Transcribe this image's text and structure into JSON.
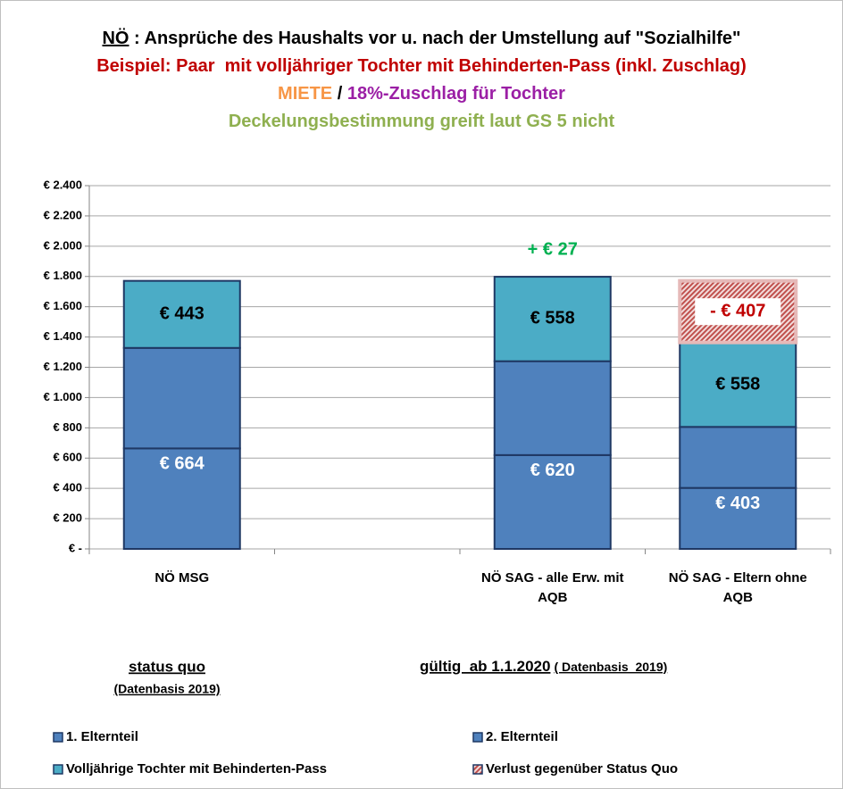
{
  "chart_data": {
    "type": "stacked_bar",
    "title_lines": [
      [
        {
          "text": "NÖ",
          "color": "#000000",
          "underline": true
        },
        {
          "text": " : Ansprüche des Haushalts vor u. nach der Umstellung auf \"Sozialhilfe\"",
          "color": "#000000"
        }
      ],
      [
        {
          "text": "Beispiel: Paar  mit volljähriger Tochter mit Behinderten-Pass (inkl. Zuschlag)",
          "color": "#c00000"
        }
      ],
      [
        {
          "text": "MIETE",
          "color": "#f79646"
        },
        {
          "text": " / ",
          "color": "#000000"
        },
        {
          "text": "18%-Zuschlag für Tochter",
          "color": "#9b1fa5"
        }
      ],
      [
        {
          "text": "Deckelungsbestimmung greift laut GS 5 nicht",
          "color": "#8fb050"
        }
      ]
    ],
    "categories": [
      "NÖ MSG",
      null,
      "NÖ SAG - alle Erw. mit AQB",
      "NÖ SAG - Eltern ohne AQB"
    ],
    "series": [
      {
        "name": "1. Elternteil",
        "color": "#4f81bd",
        "values": [
          664,
          null,
          620,
          403
        ],
        "value_labels": [
          "€ 664",
          null,
          "€ 620",
          "€ 403"
        ]
      },
      {
        "name": "2. Elternteil",
        "color": "#4f81bd",
        "values": [
          664,
          null,
          620,
          403
        ]
      },
      {
        "name": "Volljährige Tochter mit Behinderten-Pass",
        "color": "#4bacc6",
        "values": [
          443,
          null,
          558,
          558
        ],
        "value_labels": [
          "€ 443",
          null,
          "€ 558",
          "€ 558"
        ]
      },
      {
        "name": "Verlust gegenüber Status Quo",
        "color": "#c0504d",
        "hatched": true,
        "values": [
          null,
          null,
          null,
          407
        ],
        "value_labels": [
          null,
          null,
          null,
          "- € 407"
        ]
      }
    ],
    "per_label": "je",
    "difference": {
      "category": 2,
      "value": 27,
      "label": "+ € 27"
    },
    "ylim": [
      0,
      2400
    ],
    "yticks": [
      {
        "value": 0,
        "label": "€ -"
      },
      {
        "value": 200,
        "label": "€ 200"
      },
      {
        "value": 400,
        "label": "€ 400"
      },
      {
        "value": 600,
        "label": "€ 600"
      },
      {
        "value": 800,
        "label": "€ 800"
      },
      {
        "value": 1000,
        "label": "€ 1.000"
      },
      {
        "value": 1200,
        "label": "€ 1.200"
      },
      {
        "value": 1400,
        "label": "€ 1.400"
      },
      {
        "value": 1600,
        "label": "€ 1.600"
      },
      {
        "value": 1800,
        "label": "€ 1.800"
      },
      {
        "value": 2000,
        "label": "€ 2.000"
      },
      {
        "value": 2200,
        "label": "€ 2.200"
      },
      {
        "value": 2400,
        "label": "€ 2.400"
      }
    ],
    "grid": true,
    "notes": {
      "left_title": "status quo",
      "left_sub": "(Datenbasis  2019)",
      "right_title": "gültig  ab 1.1.2020",
      "right_sub": "( Datenbasis  2019)"
    }
  }
}
